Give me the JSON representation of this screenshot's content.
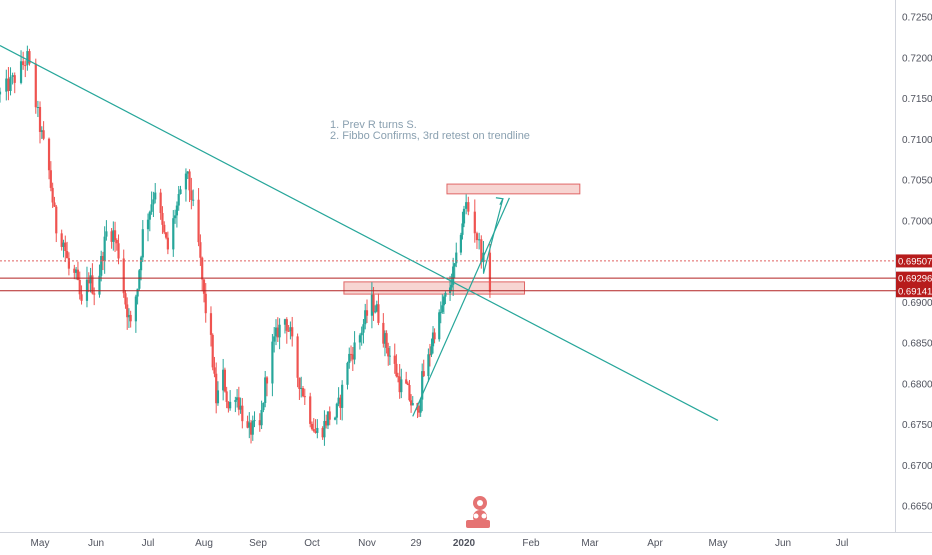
{
  "chart_data": {
    "type": "candlestick",
    "title": "",
    "y_axis": {
      "side": "right",
      "ticks": [
        0.725,
        0.72,
        0.715,
        0.71,
        0.705,
        0.7,
        0.695,
        0.69,
        0.685,
        0.68,
        0.675,
        0.67,
        0.665
      ],
      "tick_labels": [
        "0.72500",
        "0.72000",
        "0.71500",
        "0.71000",
        "0.70500",
        "0.70000",
        "0.69500",
        "0.69000",
        "0.68500",
        "0.68000",
        "0.67500",
        "0.67000",
        "0.66500"
      ],
      "ylim": [
        0.6625,
        0.727
      ]
    },
    "x_axis": {
      "ticks": [
        "May",
        "Jun",
        "Jul",
        "Aug",
        "Sep",
        "Oct",
        "Nov",
        "29",
        "2020",
        "Feb",
        "Mar",
        "Apr",
        "May",
        "Jun",
        "Jul"
      ],
      "tick_dates": [
        "2019-05-01",
        "2019-06-01",
        "2019-07-01",
        "2019-08-01",
        "2019-09-01",
        "2019-10-01",
        "2019-11-01",
        "2019-12-01",
        "2020-01-01",
        "2020-02-01",
        "2020-03-01",
        "2020-04-01",
        "2020-05-01",
        "2020-06-01",
        "2020-07-01"
      ]
    },
    "price_path": [
      [
        "2019-04-12",
        0.7155
      ],
      [
        "2019-04-19",
        0.7175
      ],
      [
        "2019-04-25",
        0.72
      ],
      [
        "2019-05-01",
        0.7115
      ],
      [
        "2019-05-06",
        0.706
      ],
      [
        "2019-05-10",
        0.699
      ],
      [
        "2019-05-14",
        0.6975
      ],
      [
        "2019-05-17",
        0.694
      ],
      [
        "2019-05-21",
        0.693
      ],
      [
        "2019-05-24",
        0.6895
      ],
      [
        "2019-05-28",
        0.693
      ],
      [
        "2019-06-01",
        0.691
      ],
      [
        "2019-06-04",
        0.695
      ],
      [
        "2019-06-07",
        0.6985
      ],
      [
        "2019-06-11",
        0.6985
      ],
      [
        "2019-06-14",
        0.696
      ],
      [
        "2019-06-18",
        0.69
      ],
      [
        "2019-06-21",
        0.687
      ],
      [
        "2019-06-25",
        0.692
      ],
      [
        "2019-06-28",
        0.6985
      ],
      [
        "2019-07-02",
        0.7015
      ],
      [
        "2019-07-05",
        0.704
      ],
      [
        "2019-07-09",
        0.699
      ],
      [
        "2019-07-12",
        0.6965
      ],
      [
        "2019-07-16",
        0.701
      ],
      [
        "2019-07-19",
        0.703
      ],
      [
        "2019-07-22",
        0.706
      ],
      [
        "2019-07-25",
        0.703
      ],
      [
        "2019-07-29",
        0.697
      ],
      [
        "2019-08-01",
        0.6905
      ],
      [
        "2019-08-05",
        0.685
      ],
      [
        "2019-08-08",
        0.678
      ],
      [
        "2019-08-12",
        0.681
      ],
      [
        "2019-08-15",
        0.677
      ],
      [
        "2019-08-19",
        0.679
      ],
      [
        "2019-08-22",
        0.677
      ],
      [
        "2019-08-26",
        0.674
      ],
      [
        "2019-08-29",
        0.6745
      ],
      [
        "2019-09-02",
        0.6745
      ],
      [
        "2019-09-05",
        0.68
      ],
      [
        "2019-09-09",
        0.6845
      ],
      [
        "2019-09-12",
        0.6865
      ],
      [
        "2019-09-16",
        0.688
      ],
      [
        "2019-09-19",
        0.686
      ],
      [
        "2019-09-23",
        0.681
      ],
      [
        "2019-09-26",
        0.679
      ],
      [
        "2019-09-30",
        0.676
      ],
      [
        "2019-10-03",
        0.674
      ],
      [
        "2019-10-07",
        0.6745
      ],
      [
        "2019-10-10",
        0.676
      ],
      [
        "2019-10-14",
        0.676
      ],
      [
        "2019-10-17",
        0.678
      ],
      [
        "2019-10-21",
        0.683
      ],
      [
        "2019-10-24",
        0.684
      ],
      [
        "2019-10-28",
        0.686
      ],
      [
        "2019-10-31",
        0.688
      ],
      [
        "2019-11-04",
        0.69
      ],
      [
        "2019-11-07",
        0.689
      ],
      [
        "2019-11-11",
        0.686
      ],
      [
        "2019-11-14",
        0.684
      ],
      [
        "2019-11-18",
        0.682
      ],
      [
        "2019-11-21",
        0.68
      ],
      [
        "2019-11-25",
        0.6795
      ],
      [
        "2019-11-29",
        0.677
      ],
      [
        "2019-12-02",
        0.676
      ],
      [
        "2019-12-05",
        0.6805
      ],
      [
        "2019-12-09",
        0.683
      ],
      [
        "2019-12-12",
        0.686
      ],
      [
        "2019-12-16",
        0.688
      ],
      [
        "2019-12-19",
        0.69
      ],
      [
        "2019-12-23",
        0.692
      ],
      [
        "2019-12-27",
        0.695
      ],
      [
        "2019-12-30",
        0.699
      ],
      [
        "2020-01-02",
        0.702
      ],
      [
        "2020-01-06",
        0.699
      ],
      [
        "2020-01-09",
        0.696
      ],
      [
        "2020-01-13",
        0.692
      ]
    ],
    "trendlines": [
      {
        "points": [
          [
            "2019-04-12",
            0.7215
          ],
          [
            "2020-05-01",
            0.6755
          ]
        ]
      },
      {
        "points": [
          [
            "2019-11-29",
            0.676
          ],
          [
            "2020-01-22",
            0.7028
          ]
        ]
      }
    ],
    "zones": [
      {
        "x_range": [
          "2019-12-21",
          "2020-02-25"
        ],
        "y_range": [
          0.7033,
          0.7045
        ]
      },
      {
        "x_range": [
          "2019-10-19",
          "2020-01-29"
        ],
        "y_range": [
          0.691,
          0.6925
        ]
      }
    ],
    "horizontal_lines": [
      {
        "value": 0.69507,
        "label": "0.69507",
        "style": "dotted",
        "color": "#e06060"
      },
      {
        "value": 0.69296,
        "label": "0.69296",
        "style": "solid",
        "color": "#b22222"
      },
      {
        "value": 0.69141,
        "label": "0.69141",
        "style": "solid",
        "color": "#b22222"
      }
    ],
    "annotations": [
      "1. Prev R turns S.",
      "2. Fibbo Confirms, 3rd retest on trendline"
    ],
    "colors": {
      "up": "#26a69a",
      "down": "#ef5350",
      "trendline": "#26a69a",
      "zone_fill": "#f4c7c3",
      "zone_border": "#e06666",
      "level": "#b22222",
      "tag": "#b71c1c"
    },
    "grid": false,
    "legend": "none"
  }
}
